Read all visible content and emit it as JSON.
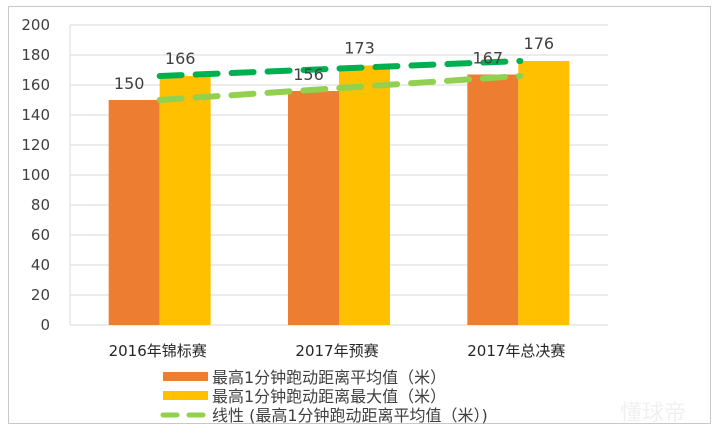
{
  "chart_data": {
    "type": "bar",
    "title": "",
    "xlabel": "",
    "ylabel": "",
    "ylim": [
      0,
      200
    ],
    "ytick_step": 20,
    "grid": true,
    "categories": [
      "2016年锦标赛",
      "2017年预赛",
      "2017年总决赛"
    ],
    "series": [
      {
        "name": "最高1分钟跑动距离平均值（米）",
        "values": [
          150,
          156,
          167
        ],
        "color": "#ED7D31"
      },
      {
        "name": "最高1分钟跑动距离最大值（米）",
        "values": [
          166,
          173,
          176
        ],
        "color": "#FFC000"
      }
    ],
    "trendlines": [
      {
        "name": "线性 (最高1分钟跑动距离平均值（米）)",
        "from": 150,
        "to": 166,
        "color": "#92D050",
        "in_legend": true
      },
      {
        "name": "",
        "from": 166,
        "to": 176,
        "color": "#00B050",
        "in_legend": false
      }
    ],
    "legend_position": "bottom",
    "watermark": "懂球帝"
  }
}
